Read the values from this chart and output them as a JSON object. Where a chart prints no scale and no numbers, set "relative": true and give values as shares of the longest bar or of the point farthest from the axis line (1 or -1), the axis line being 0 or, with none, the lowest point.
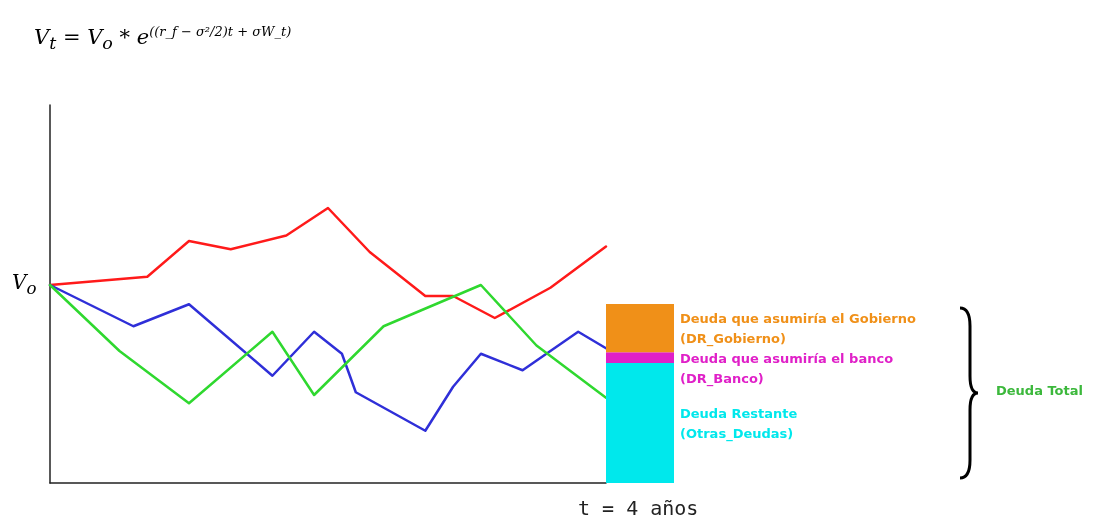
{
  "chart_data": [
    {
      "type": "line",
      "title": "V$_{t}$ = V$_{o}$ * e$^{((r_f − σ²/2)t + σW_t)}$",
      "xlabel": "t = 4 años",
      "relative": true,
      "grid": false,
      "legend": false,
      "marker": "none",
      "line_style": "solid",
      "categories": [
        null,
        null,
        null,
        null,
        null,
        null,
        null,
        null,
        null,
        null,
        null,
        null,
        null,
        null,
        null,
        null,
        null,
        null,
        null,
        null,
        null,
        null,
        null,
        null,
        null,
        null,
        null,
        null,
        null,
        null,
        null,
        null,
        null,
        null,
        null,
        null,
        null,
        null,
        null,
        null,
        null
      ],
      "annotations": [
        "V$_{o}$"
      ],
      "series": [
        {
          "color": "#ff1a1a",
          "values": [
            0.72,
            null,
            null,
            null,
            null,
            null,
            null,
            0.75,
            null,
            null,
            0.88,
            null,
            null,
            0.85,
            null,
            null,
            null,
            0.9,
            null,
            null,
            1,
            null,
            null,
            0.84,
            null,
            null,
            null,
            0.68,
            null,
            0.68,
            null,
            null,
            0.6,
            null,
            null,
            null,
            0.71,
            null,
            null,
            null,
            0.86
          ]
        },
        {
          "color": "#2f2fd8",
          "values": [
            0.72,
            null,
            null,
            null,
            null,
            null,
            0.57,
            null,
            null,
            null,
            0.65,
            null,
            null,
            null,
            null,
            null,
            0.39,
            null,
            null,
            0.55,
            null,
            0.47,
            0.33,
            null,
            null,
            null,
            null,
            0.19,
            null,
            0.35,
            null,
            0.47,
            null,
            null,
            0.41,
            null,
            null,
            null,
            0.55,
            null,
            0.49
          ]
        },
        {
          "color": "#2fd82f",
          "values": [
            0.72,
            null,
            null,
            null,
            null,
            0.48,
            null,
            null,
            null,
            null,
            0.29,
            null,
            null,
            null,
            null,
            null,
            0.55,
            null,
            null,
            0.32,
            null,
            null,
            null,
            null,
            0.57,
            null,
            null,
            null,
            null,
            null,
            null,
            0.72,
            null,
            null,
            null,
            0.5,
            null,
            null,
            null,
            null,
            0.31
          ]
        }
      ]
    },
    {
      "type": "bar",
      "relative": true,
      "stacked": true,
      "grid": false,
      "legend": false,
      "categories": [
        null
      ],
      "annotations": [
        "Deuda Total"
      ],
      "series": [
        {
          "name": "Deuda Restante\n(Otras_Deudas)",
          "color": "#00e8ec",
          "values": [
            0.67
          ]
        },
        {
          "name": "Deuda que asumiría el banco\n(DR_Banco)",
          "color": "#e020c8",
          "values": [
            0.06
          ]
        },
        {
          "name": "Deuda que asumiría el Gobierno\n(DR_Gobierno)",
          "color": "#f09018",
          "values": [
            0.27
          ]
        }
      ]
    }
  ]
}
